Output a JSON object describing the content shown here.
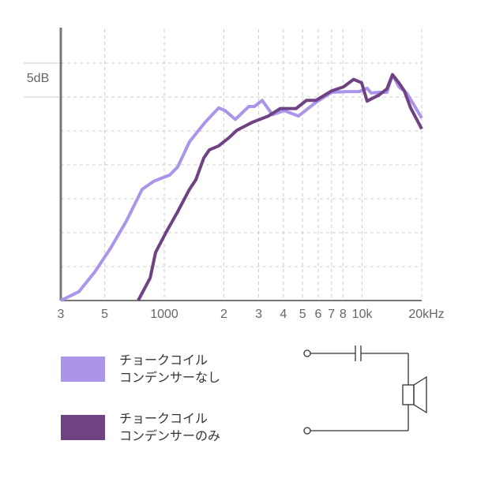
{
  "chart_data": {
    "type": "line",
    "x_scale": "log",
    "xlim": [
      300,
      20000
    ],
    "ylim": [
      0,
      40
    ],
    "xticks": [
      {
        "value": 300,
        "label": "3"
      },
      {
        "value": 500,
        "label": "5"
      },
      1000,
      {
        "value": 2000,
        "label": "2"
      },
      {
        "value": 3000,
        "label": "3"
      },
      {
        "value": 4000,
        "label": "4"
      },
      {
        "value": 5000,
        "label": "5"
      },
      {
        "value": 6000,
        "label": "6"
      },
      {
        "value": 7000,
        "label": "7"
      },
      {
        "value": 8000,
        "label": "8"
      },
      {
        "value": 10000,
        "label": "10k"
      },
      {
        "value": 20000,
        "label": "20kHz"
      }
    ],
    "yticks": [
      5,
      10,
      15,
      20,
      25,
      30,
      35
    ],
    "scale_label": "5dB",
    "grid": true,
    "series": [
      {
        "name": "チョークコイル\nコンデンサーなし",
        "color": "#ab95ea",
        "x": [
          300,
          370,
          445,
          535,
          643,
          773,
          887,
          1066,
          1169,
          1341,
          1611,
          1884,
          2028,
          2286,
          2673,
          2850,
          3125,
          3519,
          4038,
          4767,
          5835,
          7010,
          8430,
          9660,
          10590,
          11090,
          12170,
          13340,
          14230,
          15330,
          16800,
          20000
        ],
        "values": [
          0,
          1.3,
          4.2,
          7.7,
          11.7,
          16.4,
          17.6,
          18.5,
          19.7,
          23.4,
          26.3,
          28.4,
          28.0,
          26.7,
          28.6,
          28.6,
          29.5,
          27.4,
          28.0,
          27.2,
          29.2,
          30.7,
          30.8,
          30.8,
          31.3,
          30.6,
          30.7,
          30.7,
          33.3,
          31.5,
          30.6,
          26.9
        ]
      },
      {
        "name": "チョークコイル\nコンデンサーのみ",
        "color": "#6e4283",
        "x": [
          738,
          848,
          904,
          1019,
          1169,
          1341,
          1444,
          1583,
          1688,
          1884,
          2124,
          2328,
          2799,
          3360,
          3857,
          4636,
          5226,
          5835,
          7010,
          8050,
          9060,
          9940,
          10590,
          12170,
          13340,
          14230,
          15330,
          16340,
          17580,
          20000
        ],
        "values": [
          0,
          3.3,
          7.1,
          10,
          13.1,
          16.4,
          17.8,
          21,
          22.2,
          22.8,
          24,
          25.1,
          26.3,
          27.2,
          28.3,
          28.3,
          29.5,
          29.5,
          30.9,
          31.5,
          32.6,
          32.1,
          29.4,
          30.3,
          31.2,
          33.3,
          32.1,
          30.9,
          28.4,
          25.3
        ]
      }
    ]
  }
}
